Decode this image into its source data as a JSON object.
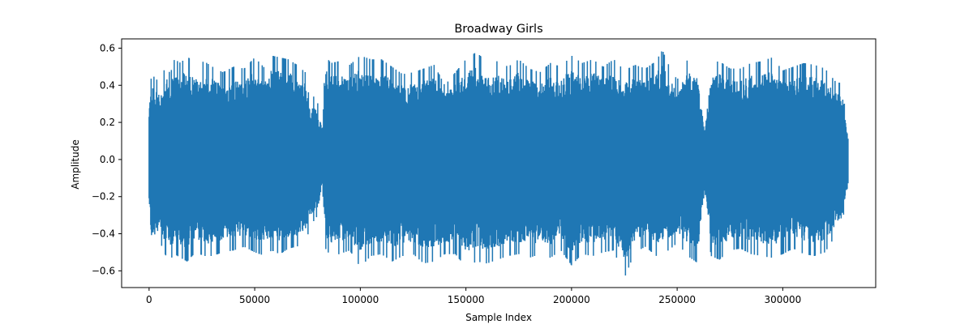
{
  "chart_data": {
    "type": "line",
    "title": "Broadway Girls",
    "xlabel": "Sample Index",
    "ylabel": "Amplitude",
    "xlim": [
      -13000,
      344000
    ],
    "ylim": [
      -0.69,
      0.65
    ],
    "x_ticks": [
      0,
      50000,
      100000,
      150000,
      200000,
      250000,
      300000
    ],
    "x_tick_labels": [
      "0",
      "50000",
      "100000",
      "150000",
      "200000",
      "250000",
      "300000"
    ],
    "y_ticks": [
      -0.6,
      -0.4,
      -0.2,
      0.0,
      0.2,
      0.4,
      0.6
    ],
    "y_tick_labels": [
      "−0.6",
      "−0.4",
      "−0.2",
      "0.0",
      "0.2",
      "0.4",
      "0.6"
    ],
    "grid": false,
    "series": [
      {
        "color": "#1f77b4",
        "n_samples": 331000,
        "envelope": {
          "x": [
            0,
            1000,
            3000,
            5000,
            8000,
            10000,
            12000,
            15000,
            18000,
            22000,
            26000,
            30000,
            35000,
            40000,
            45000,
            50000,
            55000,
            58000,
            62000,
            66000,
            70000,
            74000,
            76000,
            78000,
            80000,
            82000,
            83500,
            86000,
            90000,
            95000,
            100000,
            105000,
            110000,
            115000,
            120000,
            125000,
            130000,
            135000,
            140000,
            145000,
            150000,
            155000,
            160000,
            165000,
            170000,
            175000,
            180000,
            185000,
            190000,
            195000,
            200000,
            205000,
            210000,
            215000,
            220000,
            225000,
            230000,
            235000,
            240000,
            243000,
            246000,
            250000,
            255000,
            260000,
            263000,
            266000,
            270000,
            275000,
            280000,
            285000,
            290000,
            295000,
            300000,
            305000,
            310000,
            315000,
            320000,
            325000,
            328000,
            331000
          ],
          "max": [
            0.33,
            0.44,
            0.45,
            0.39,
            0.52,
            0.46,
            0.54,
            0.52,
            0.56,
            0.5,
            0.53,
            0.5,
            0.47,
            0.5,
            0.49,
            0.55,
            0.49,
            0.56,
            0.55,
            0.54,
            0.51,
            0.47,
            0.32,
            0.34,
            0.3,
            0.18,
            0.56,
            0.52,
            0.53,
            0.51,
            0.56,
            0.54,
            0.54,
            0.5,
            0.46,
            0.47,
            0.49,
            0.51,
            0.4,
            0.47,
            0.54,
            0.58,
            0.52,
            0.53,
            0.5,
            0.54,
            0.49,
            0.47,
            0.52,
            0.5,
            0.56,
            0.52,
            0.54,
            0.5,
            0.54,
            0.48,
            0.51,
            0.49,
            0.53,
            0.59,
            0.51,
            0.43,
            0.54,
            0.5,
            0.17,
            0.52,
            0.53,
            0.49,
            0.49,
            0.52,
            0.53,
            0.55,
            0.48,
            0.5,
            0.52,
            0.51,
            0.49,
            0.42,
            0.41,
            0.13
          ],
          "min": [
            -0.24,
            -0.48,
            -0.47,
            -0.44,
            -0.52,
            -0.54,
            -0.51,
            -0.53,
            -0.55,
            -0.5,
            -0.52,
            -0.52,
            -0.5,
            -0.49,
            -0.47,
            -0.5,
            -0.52,
            -0.49,
            -0.51,
            -0.48,
            -0.47,
            -0.44,
            -0.38,
            -0.33,
            -0.3,
            -0.16,
            -0.48,
            -0.52,
            -0.51,
            -0.49,
            -0.58,
            -0.52,
            -0.51,
            -0.55,
            -0.52,
            -0.51,
            -0.56,
            -0.55,
            -0.51,
            -0.51,
            -0.58,
            -0.55,
            -0.56,
            -0.54,
            -0.52,
            -0.51,
            -0.53,
            -0.51,
            -0.53,
            -0.49,
            -0.57,
            -0.51,
            -0.52,
            -0.5,
            -0.49,
            -0.64,
            -0.5,
            -0.47,
            -0.52,
            -0.5,
            -0.49,
            -0.45,
            -0.52,
            -0.56,
            -0.15,
            -0.52,
            -0.54,
            -0.49,
            -0.48,
            -0.51,
            -0.52,
            -0.53,
            -0.51,
            -0.48,
            -0.51,
            -0.52,
            -0.5,
            -0.41,
            -0.36,
            -0.12
          ]
        }
      }
    ]
  }
}
